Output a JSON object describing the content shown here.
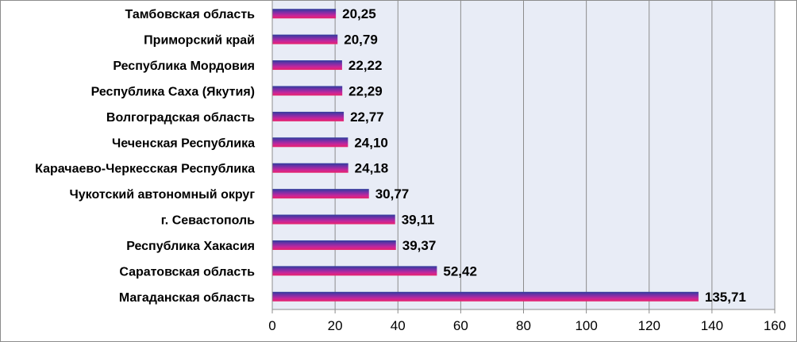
{
  "chart_data": {
    "type": "bar",
    "orientation": "horizontal",
    "categories": [
      "Магаданская область",
      "Саратовская область",
      "Республика Хакасия",
      "г. Севастополь",
      "Чукотский автономный округ",
      "Карачаево-Черкесская Республика",
      "Чеченская Республика",
      "Волгоградская область",
      "Республика Саха (Якутия)",
      "Республика Мордовия",
      "Приморский край",
      "Тамбовская область"
    ],
    "values": [
      135.71,
      52.42,
      39.37,
      39.11,
      30.77,
      24.18,
      24.1,
      22.77,
      22.29,
      22.22,
      20.79,
      20.25
    ],
    "value_labels": [
      "135,71",
      "52,42",
      "39,37",
      "39,11",
      "30,77",
      "24,18",
      "24,10",
      "22,77",
      "22,29",
      "22,22",
      "20,79",
      "20,25"
    ],
    "xlim": [
      0,
      160
    ],
    "xticks": [
      0,
      20,
      40,
      60,
      80,
      100,
      120,
      140,
      160
    ],
    "xtick_labels": [
      "0",
      "20",
      "40",
      "60",
      "80",
      "100",
      "120",
      "140",
      "160"
    ],
    "grid": "vertical",
    "legend": "none",
    "title": "",
    "xlabel": "",
    "ylabel": ""
  },
  "colors": {
    "plot_background": "#e8ecf6",
    "gridline": "#8c8c8c",
    "bar_gradient": [
      "#2e3d9c",
      "#7b2fa8",
      "#c8269a",
      "#e8246b"
    ]
  }
}
